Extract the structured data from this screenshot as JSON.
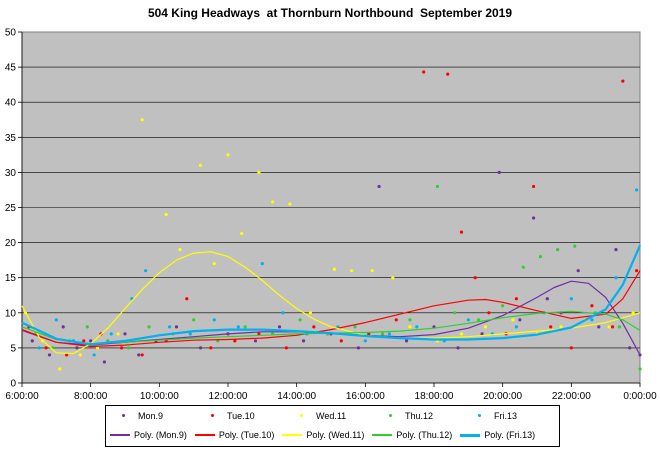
{
  "chart_data": {
    "type": "scatter",
    "title": "504 King Headways  at Thornburn Northbound  September 2019",
    "xlabel": "",
    "ylabel": "",
    "x_ticks": [
      "6:00:00",
      "8:00:00",
      "10:00:00",
      "12:00:00",
      "14:00:00",
      "16:00:00",
      "18:00:00",
      "20:00:00",
      "22:00:00",
      "0:00:00"
    ],
    "x_range_hours": [
      6,
      24
    ],
    "ylim": [
      0,
      50
    ],
    "y_ticks": [
      "0",
      "5",
      "10",
      "15",
      "20",
      "25",
      "30",
      "35",
      "40",
      "45",
      "50"
    ],
    "grid": "horizontal",
    "plot_background": "#c0c0c0",
    "legend_position": "bottom",
    "series": [
      {
        "name": "Mon.9",
        "color": "#7030a0",
        "marker": "dot",
        "points": [
          [
            6.3,
            6
          ],
          [
            6.8,
            4
          ],
          [
            7.2,
            8
          ],
          [
            7.6,
            5
          ],
          [
            8.0,
            6
          ],
          [
            8.4,
            3
          ],
          [
            9.0,
            7
          ],
          [
            9.4,
            4
          ],
          [
            9.9,
            6
          ],
          [
            10.5,
            8
          ],
          [
            11.2,
            5
          ],
          [
            12.0,
            7
          ],
          [
            12.8,
            6
          ],
          [
            13.5,
            8
          ],
          [
            14.2,
            6
          ],
          [
            15.0,
            7
          ],
          [
            15.8,
            5
          ],
          [
            16.4,
            28
          ],
          [
            17.2,
            6
          ],
          [
            18.0,
            8
          ],
          [
            18.7,
            5
          ],
          [
            19.4,
            7
          ],
          [
            19.9,
            30
          ],
          [
            20.5,
            9
          ],
          [
            20.9,
            23.5
          ],
          [
            21.3,
            12
          ],
          [
            21.7,
            10
          ],
          [
            22.2,
            16
          ],
          [
            22.8,
            8
          ],
          [
            23.3,
            19
          ],
          [
            23.7,
            5
          ],
          [
            24.0,
            4
          ]
        ]
      },
      {
        "name": "Tue.10",
        "color": "#ff0000",
        "marker": "dot",
        "points": [
          [
            6.2,
            8
          ],
          [
            6.7,
            5
          ],
          [
            7.3,
            4
          ],
          [
            7.8,
            6
          ],
          [
            8.3,
            7
          ],
          [
            8.9,
            5
          ],
          [
            9.5,
            4
          ],
          [
            10.2,
            6
          ],
          [
            10.8,
            12
          ],
          [
            11.5,
            5
          ],
          [
            12.2,
            6
          ],
          [
            12.9,
            7
          ],
          [
            13.7,
            5
          ],
          [
            14.5,
            8
          ],
          [
            15.3,
            6
          ],
          [
            16.1,
            7
          ],
          [
            16.9,
            9
          ],
          [
            17.7,
            44.3
          ],
          [
            18.4,
            44
          ],
          [
            18.8,
            21.5
          ],
          [
            19.2,
            15
          ],
          [
            19.6,
            10
          ],
          [
            20.1,
            7
          ],
          [
            20.4,
            12
          ],
          [
            20.9,
            28
          ],
          [
            21.4,
            8
          ],
          [
            22.0,
            5
          ],
          [
            22.6,
            11
          ],
          [
            23.2,
            8
          ],
          [
            23.5,
            43
          ],
          [
            23.9,
            16
          ]
        ]
      },
      {
        "name": "Wed.11",
        "color": "#ffff00",
        "marker": "dot",
        "points": [
          [
            6.1,
            10
          ],
          [
            6.6,
            6
          ],
          [
            7.1,
            2
          ],
          [
            7.7,
            4
          ],
          [
            8.2,
            5
          ],
          [
            8.8,
            7
          ],
          [
            9.5,
            37.5
          ],
          [
            10.2,
            24
          ],
          [
            10.6,
            19
          ],
          [
            11.2,
            31
          ],
          [
            11.6,
            17
          ],
          [
            12.0,
            32.5
          ],
          [
            12.4,
            21.3
          ],
          [
            12.9,
            30
          ],
          [
            13.3,
            25.8
          ],
          [
            13.8,
            25.5
          ],
          [
            14.4,
            10
          ],
          [
            15.1,
            16.2
          ],
          [
            15.6,
            16
          ],
          [
            16.2,
            16
          ],
          [
            16.8,
            15
          ],
          [
            17.3,
            8
          ],
          [
            18.1,
            6
          ],
          [
            18.8,
            7
          ],
          [
            19.5,
            8
          ],
          [
            20.3,
            9
          ],
          [
            21.0,
            7
          ],
          [
            21.7,
            8
          ],
          [
            22.4,
            9
          ],
          [
            23.1,
            8
          ],
          [
            23.8,
            10
          ]
        ]
      },
      {
        "name": "Thu.12",
        "color": "#33cc33",
        "marker": "dot",
        "points": [
          [
            6.4,
            7
          ],
          [
            6.9,
            5
          ],
          [
            7.4,
            6
          ],
          [
            7.9,
            8
          ],
          [
            8.5,
            6
          ],
          [
            9.1,
            5
          ],
          [
            9.7,
            8
          ],
          [
            10.4,
            7
          ],
          [
            11.0,
            9
          ],
          [
            11.7,
            6
          ],
          [
            12.5,
            8
          ],
          [
            13.3,
            7
          ],
          [
            14.1,
            9
          ],
          [
            14.9,
            7
          ],
          [
            15.7,
            8
          ],
          [
            16.5,
            7
          ],
          [
            17.3,
            9
          ],
          [
            18.1,
            28
          ],
          [
            18.6,
            10
          ],
          [
            19.3,
            9
          ],
          [
            20.0,
            11
          ],
          [
            20.6,
            16.5
          ],
          [
            21.1,
            18
          ],
          [
            21.6,
            19
          ],
          [
            22.1,
            19.5
          ],
          [
            22.7,
            10
          ],
          [
            23.4,
            8
          ],
          [
            24.0,
            2
          ]
        ]
      },
      {
        "name": "Fri.13",
        "color": "#00b0f0",
        "marker": "dot",
        "points": [
          [
            6.5,
            5
          ],
          [
            7.0,
            9
          ],
          [
            7.5,
            6
          ],
          [
            8.1,
            4
          ],
          [
            8.6,
            7
          ],
          [
            9.2,
            12
          ],
          [
            9.6,
            16
          ],
          [
            10.3,
            8
          ],
          [
            10.9,
            7
          ],
          [
            11.6,
            9
          ],
          [
            12.3,
            8
          ],
          [
            13.0,
            17
          ],
          [
            13.6,
            10
          ],
          [
            14.3,
            7
          ],
          [
            15.2,
            8
          ],
          [
            16.0,
            6
          ],
          [
            16.7,
            7
          ],
          [
            17.5,
            8
          ],
          [
            18.3,
            6
          ],
          [
            19.0,
            9
          ],
          [
            19.7,
            7
          ],
          [
            20.4,
            8
          ],
          [
            21.2,
            10
          ],
          [
            22.0,
            12
          ],
          [
            22.6,
            9
          ],
          [
            23.3,
            15
          ],
          [
            23.9,
            27.5
          ]
        ]
      }
    ],
    "trendlines": [
      {
        "name": "Poly. (Mon.9)",
        "color": "#7030a0",
        "width": 1.2,
        "points": [
          [
            6,
            7.5
          ],
          [
            7,
            5.8
          ],
          [
            8,
            5.4
          ],
          [
            9,
            5.8
          ],
          [
            10,
            6.2
          ],
          [
            11,
            6.6
          ],
          [
            12,
            7.0
          ],
          [
            13,
            7.3
          ],
          [
            14,
            7.3
          ],
          [
            15,
            7.1
          ],
          [
            16,
            6.8
          ],
          [
            17,
            6.6
          ],
          [
            18,
            6.9
          ],
          [
            19,
            7.8
          ],
          [
            20,
            9.6
          ],
          [
            21,
            12.2
          ],
          [
            21.5,
            13.6
          ],
          [
            22,
            14.5
          ],
          [
            22.5,
            14.2
          ],
          [
            23,
            12.2
          ],
          [
            23.5,
            8.5
          ],
          [
            24,
            4
          ]
        ]
      },
      {
        "name": "Poly. (Tue.10)",
        "color": "#ff0000",
        "width": 1.2,
        "points": [
          [
            6,
            7.6
          ],
          [
            7,
            5.8
          ],
          [
            8,
            5.2
          ],
          [
            9,
            5.4
          ],
          [
            10,
            5.8
          ],
          [
            11,
            6.1
          ],
          [
            12,
            6.2
          ],
          [
            13,
            6.4
          ],
          [
            14,
            6.8
          ],
          [
            15,
            7.6
          ],
          [
            16,
            8.6
          ],
          [
            17,
            9.8
          ],
          [
            18,
            11.0
          ],
          [
            19,
            11.8
          ],
          [
            19.5,
            11.9
          ],
          [
            20,
            11.5
          ],
          [
            21,
            10.3
          ],
          [
            22,
            9.2
          ],
          [
            23,
            9.8
          ],
          [
            23.5,
            12
          ],
          [
            24,
            16
          ]
        ]
      },
      {
        "name": "Poly. (Wed.11)",
        "color": "#ffff00",
        "width": 1.2,
        "points": [
          [
            6,
            11
          ],
          [
            6.5,
            6.5
          ],
          [
            7,
            4.3
          ],
          [
            7.5,
            4.2
          ],
          [
            8,
            5.6
          ],
          [
            8.5,
            7.8
          ],
          [
            9,
            10.6
          ],
          [
            9.5,
            13.3
          ],
          [
            10,
            15.7
          ],
          [
            10.5,
            17.5
          ],
          [
            11,
            18.5
          ],
          [
            11.5,
            18.7
          ],
          [
            12,
            18.0
          ],
          [
            12.5,
            16.5
          ],
          [
            13,
            14.6
          ],
          [
            13.5,
            12.5
          ],
          [
            14,
            10.6
          ],
          [
            14.5,
            9.1
          ],
          [
            15,
            8.0
          ],
          [
            16,
            6.8
          ],
          [
            17,
            6.4
          ],
          [
            18,
            6.4
          ],
          [
            19,
            6.6
          ],
          [
            20,
            7.0
          ],
          [
            21,
            7.4
          ],
          [
            22,
            7.8
          ],
          [
            23,
            8.6
          ],
          [
            24,
            10
          ]
        ]
      },
      {
        "name": "Poly. (Thu.12)",
        "color": "#33cc33",
        "width": 1.2,
        "points": [
          [
            6,
            8
          ],
          [
            7,
            6.2
          ],
          [
            8,
            5.6
          ],
          [
            9,
            5.8
          ],
          [
            10,
            6.1
          ],
          [
            11,
            6.4
          ],
          [
            12,
            6.6
          ],
          [
            13,
            6.8
          ],
          [
            14,
            7.0
          ],
          [
            15,
            7.1
          ],
          [
            16,
            7.2
          ],
          [
            17,
            7.4
          ],
          [
            18,
            7.8
          ],
          [
            19,
            8.5
          ],
          [
            20,
            9.3
          ],
          [
            21,
            9.9
          ],
          [
            22,
            10.2
          ],
          [
            23,
            9.8
          ],
          [
            23.5,
            9
          ],
          [
            24,
            7.5
          ]
        ]
      },
      {
        "name": "Poly. (Fri.13)",
        "color": "#00b0f0",
        "width": 2.2,
        "points": [
          [
            6,
            8.6
          ],
          [
            7,
            6.3
          ],
          [
            8,
            5.5
          ],
          [
            9,
            6.0
          ],
          [
            10,
            6.8
          ],
          [
            11,
            7.4
          ],
          [
            12,
            7.6
          ],
          [
            13,
            7.6
          ],
          [
            14,
            7.4
          ],
          [
            15,
            7.1
          ],
          [
            16,
            6.7
          ],
          [
            17,
            6.4
          ],
          [
            18,
            6.2
          ],
          [
            19,
            6.2
          ],
          [
            20,
            6.4
          ],
          [
            21,
            6.9
          ],
          [
            22,
            7.9
          ],
          [
            23,
            10.5
          ],
          [
            23.5,
            14
          ],
          [
            24,
            19.6
          ]
        ]
      }
    ]
  }
}
